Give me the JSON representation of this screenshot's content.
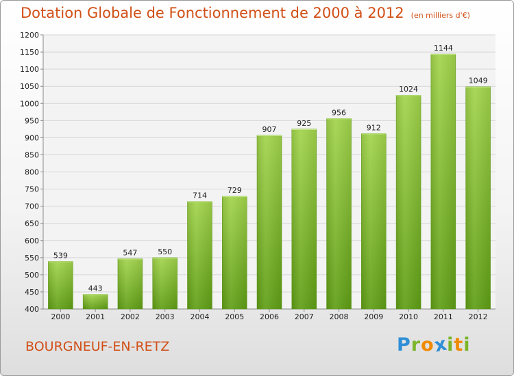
{
  "chart_data": {
    "type": "bar",
    "title": "Dotation Globale de Fonctionnement de 2000 à 2012",
    "subtitle": "(en milliers d'€)",
    "categories": [
      "2000",
      "2001",
      "2002",
      "2003",
      "2004",
      "2005",
      "2006",
      "2007",
      "2008",
      "2009",
      "2010",
      "2011",
      "2012"
    ],
    "values": [
      539,
      443,
      547,
      550,
      714,
      729,
      907,
      925,
      956,
      912,
      1024,
      1144,
      1049
    ],
    "ylim": [
      400,
      1200
    ],
    "yticks": [
      400,
      450,
      500,
      550,
      600,
      650,
      700,
      750,
      800,
      850,
      900,
      950,
      1000,
      1050,
      1100,
      1150,
      1200
    ],
    "xlabel": "",
    "ylabel": "",
    "grid": true,
    "bar_color": "#86c232"
  },
  "footer": {
    "commune": "BOURGNEUF-EN-RETZ"
  },
  "logo": {
    "letters": [
      "P",
      "r",
      "o",
      "x",
      "i",
      "t",
      "i"
    ],
    "colors": [
      "#2f8fd6",
      "#7ab52a",
      "#f08a00",
      "#2f8fd6",
      "#7ab52a",
      "#f08a00",
      "#7ab52a"
    ]
  }
}
